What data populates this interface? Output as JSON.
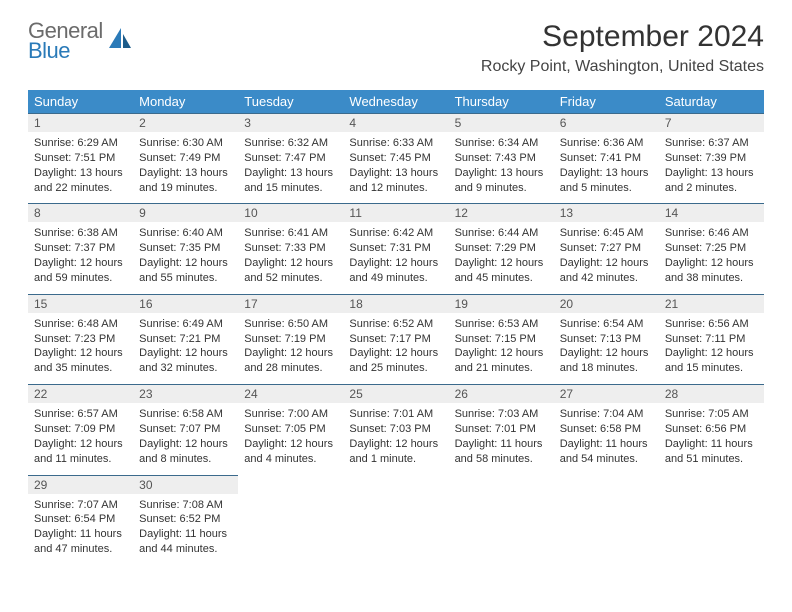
{
  "logo": {
    "line1": "General",
    "line2": "Blue"
  },
  "header": {
    "month_title": "September 2024",
    "location": "Rocky Point, Washington, United States"
  },
  "colors": {
    "header_bg": "#3b8bc8",
    "header_text": "#ffffff",
    "daynum_bg": "#eeeeee",
    "daynum_border": "#3b6a8c",
    "body_bg": "#ffffff",
    "logo_gray": "#6b6b6b",
    "logo_blue": "#2a7ab8"
  },
  "weekdays": [
    "Sunday",
    "Monday",
    "Tuesday",
    "Wednesday",
    "Thursday",
    "Friday",
    "Saturday"
  ],
  "weeks": [
    [
      {
        "num": "1",
        "sunrise": "Sunrise: 6:29 AM",
        "sunset": "Sunset: 7:51 PM",
        "day1": "Daylight: 13 hours",
        "day2": "and 22 minutes."
      },
      {
        "num": "2",
        "sunrise": "Sunrise: 6:30 AM",
        "sunset": "Sunset: 7:49 PM",
        "day1": "Daylight: 13 hours",
        "day2": "and 19 minutes."
      },
      {
        "num": "3",
        "sunrise": "Sunrise: 6:32 AM",
        "sunset": "Sunset: 7:47 PM",
        "day1": "Daylight: 13 hours",
        "day2": "and 15 minutes."
      },
      {
        "num": "4",
        "sunrise": "Sunrise: 6:33 AM",
        "sunset": "Sunset: 7:45 PM",
        "day1": "Daylight: 13 hours",
        "day2": "and 12 minutes."
      },
      {
        "num": "5",
        "sunrise": "Sunrise: 6:34 AM",
        "sunset": "Sunset: 7:43 PM",
        "day1": "Daylight: 13 hours",
        "day2": "and 9 minutes."
      },
      {
        "num": "6",
        "sunrise": "Sunrise: 6:36 AM",
        "sunset": "Sunset: 7:41 PM",
        "day1": "Daylight: 13 hours",
        "day2": "and 5 minutes."
      },
      {
        "num": "7",
        "sunrise": "Sunrise: 6:37 AM",
        "sunset": "Sunset: 7:39 PM",
        "day1": "Daylight: 13 hours",
        "day2": "and 2 minutes."
      }
    ],
    [
      {
        "num": "8",
        "sunrise": "Sunrise: 6:38 AM",
        "sunset": "Sunset: 7:37 PM",
        "day1": "Daylight: 12 hours",
        "day2": "and 59 minutes."
      },
      {
        "num": "9",
        "sunrise": "Sunrise: 6:40 AM",
        "sunset": "Sunset: 7:35 PM",
        "day1": "Daylight: 12 hours",
        "day2": "and 55 minutes."
      },
      {
        "num": "10",
        "sunrise": "Sunrise: 6:41 AM",
        "sunset": "Sunset: 7:33 PM",
        "day1": "Daylight: 12 hours",
        "day2": "and 52 minutes."
      },
      {
        "num": "11",
        "sunrise": "Sunrise: 6:42 AM",
        "sunset": "Sunset: 7:31 PM",
        "day1": "Daylight: 12 hours",
        "day2": "and 49 minutes."
      },
      {
        "num": "12",
        "sunrise": "Sunrise: 6:44 AM",
        "sunset": "Sunset: 7:29 PM",
        "day1": "Daylight: 12 hours",
        "day2": "and 45 minutes."
      },
      {
        "num": "13",
        "sunrise": "Sunrise: 6:45 AM",
        "sunset": "Sunset: 7:27 PM",
        "day1": "Daylight: 12 hours",
        "day2": "and 42 minutes."
      },
      {
        "num": "14",
        "sunrise": "Sunrise: 6:46 AM",
        "sunset": "Sunset: 7:25 PM",
        "day1": "Daylight: 12 hours",
        "day2": "and 38 minutes."
      }
    ],
    [
      {
        "num": "15",
        "sunrise": "Sunrise: 6:48 AM",
        "sunset": "Sunset: 7:23 PM",
        "day1": "Daylight: 12 hours",
        "day2": "and 35 minutes."
      },
      {
        "num": "16",
        "sunrise": "Sunrise: 6:49 AM",
        "sunset": "Sunset: 7:21 PM",
        "day1": "Daylight: 12 hours",
        "day2": "and 32 minutes."
      },
      {
        "num": "17",
        "sunrise": "Sunrise: 6:50 AM",
        "sunset": "Sunset: 7:19 PM",
        "day1": "Daylight: 12 hours",
        "day2": "and 28 minutes."
      },
      {
        "num": "18",
        "sunrise": "Sunrise: 6:52 AM",
        "sunset": "Sunset: 7:17 PM",
        "day1": "Daylight: 12 hours",
        "day2": "and 25 minutes."
      },
      {
        "num": "19",
        "sunrise": "Sunrise: 6:53 AM",
        "sunset": "Sunset: 7:15 PM",
        "day1": "Daylight: 12 hours",
        "day2": "and 21 minutes."
      },
      {
        "num": "20",
        "sunrise": "Sunrise: 6:54 AM",
        "sunset": "Sunset: 7:13 PM",
        "day1": "Daylight: 12 hours",
        "day2": "and 18 minutes."
      },
      {
        "num": "21",
        "sunrise": "Sunrise: 6:56 AM",
        "sunset": "Sunset: 7:11 PM",
        "day1": "Daylight: 12 hours",
        "day2": "and 15 minutes."
      }
    ],
    [
      {
        "num": "22",
        "sunrise": "Sunrise: 6:57 AM",
        "sunset": "Sunset: 7:09 PM",
        "day1": "Daylight: 12 hours",
        "day2": "and 11 minutes."
      },
      {
        "num": "23",
        "sunrise": "Sunrise: 6:58 AM",
        "sunset": "Sunset: 7:07 PM",
        "day1": "Daylight: 12 hours",
        "day2": "and 8 minutes."
      },
      {
        "num": "24",
        "sunrise": "Sunrise: 7:00 AM",
        "sunset": "Sunset: 7:05 PM",
        "day1": "Daylight: 12 hours",
        "day2": "and 4 minutes."
      },
      {
        "num": "25",
        "sunrise": "Sunrise: 7:01 AM",
        "sunset": "Sunset: 7:03 PM",
        "day1": "Daylight: 12 hours",
        "day2": "and 1 minute."
      },
      {
        "num": "26",
        "sunrise": "Sunrise: 7:03 AM",
        "sunset": "Sunset: 7:01 PM",
        "day1": "Daylight: 11 hours",
        "day2": "and 58 minutes."
      },
      {
        "num": "27",
        "sunrise": "Sunrise: 7:04 AM",
        "sunset": "Sunset: 6:58 PM",
        "day1": "Daylight: 11 hours",
        "day2": "and 54 minutes."
      },
      {
        "num": "28",
        "sunrise": "Sunrise: 7:05 AM",
        "sunset": "Sunset: 6:56 PM",
        "day1": "Daylight: 11 hours",
        "day2": "and 51 minutes."
      }
    ],
    [
      {
        "num": "29",
        "sunrise": "Sunrise: 7:07 AM",
        "sunset": "Sunset: 6:54 PM",
        "day1": "Daylight: 11 hours",
        "day2": "and 47 minutes."
      },
      {
        "num": "30",
        "sunrise": "Sunrise: 7:08 AM",
        "sunset": "Sunset: 6:52 PM",
        "day1": "Daylight: 11 hours",
        "day2": "and 44 minutes."
      },
      null,
      null,
      null,
      null,
      null
    ]
  ]
}
